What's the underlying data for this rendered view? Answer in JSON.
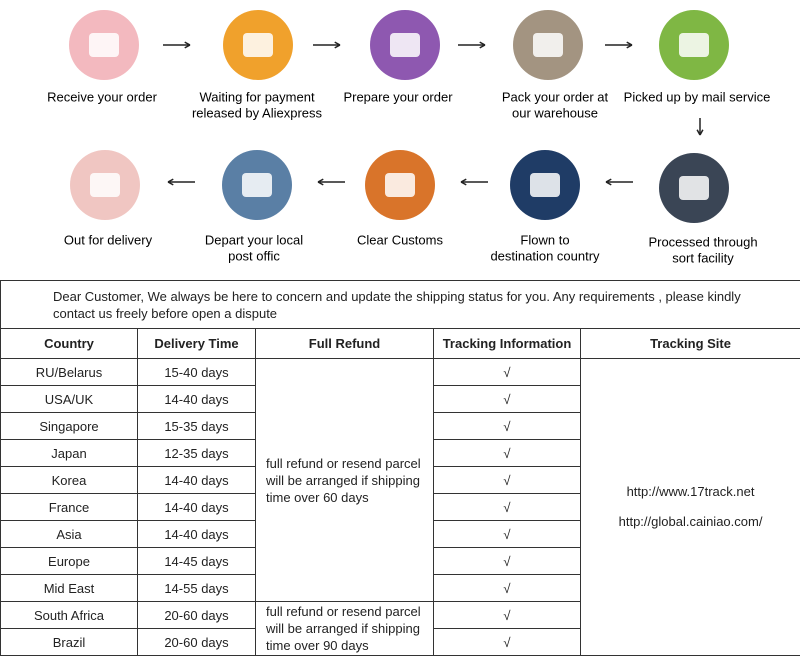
{
  "steps": [
    {
      "lines": [
        "Receive your order"
      ]
    },
    {
      "lines": [
        "Waiting for payment",
        "released by Aliexpress"
      ]
    },
    {
      "lines": [
        "Prepare your order"
      ]
    },
    {
      "lines": [
        "Pack your order at",
        "our warehouse"
      ]
    },
    {
      "lines": [
        "Picked up by mail service"
      ]
    },
    {
      "lines": [
        "Processed through",
        "sort facility"
      ]
    },
    {
      "lines": [
        "Flown to",
        "destination country"
      ]
    },
    {
      "lines": [
        "Clear  Customs"
      ]
    },
    {
      "lines": [
        "Depart your local",
        "post offic"
      ]
    },
    {
      "lines": [
        "Out for delivery"
      ]
    }
  ],
  "notice": [
    "Dear Customer, We always be here to concern and update the shipping status for you.  Any requirements , please kindly",
    "contact us freely before open a dispute"
  ],
  "table": {
    "headers": [
      "Country",
      "Delivery Time",
      "Full Refund",
      "Tracking Information",
      "Tracking Site"
    ],
    "rows": [
      [
        "RU/Belarus",
        "15-40 days",
        "√"
      ],
      [
        "USA/UK",
        "14-40 days",
        "√"
      ],
      [
        "Singapore",
        "15-35 days",
        "√"
      ],
      [
        "Japan",
        "12-35 days",
        "√"
      ],
      [
        "Korea",
        "14-40 days",
        "√"
      ],
      [
        "France",
        "14-40 days",
        "√"
      ],
      [
        "Asia",
        "14-40 days",
        "√"
      ],
      [
        "Europe",
        "14-45 days",
        "√"
      ],
      [
        "Mid East",
        "14-55 days",
        "√"
      ],
      [
        "South Africa",
        "20-60 days",
        "√"
      ],
      [
        "Brazil",
        "20-60 days",
        "√"
      ]
    ],
    "refund": [
      {
        "rows": 9,
        "lines": [
          "full refund or resend parcel",
          "will be arranged if shipping",
          "time over 60 days"
        ]
      },
      {
        "rows": 2,
        "lines": [
          "full refund or resend parcel",
          "will be arranged if shipping",
          "time over 90 days"
        ]
      }
    ],
    "sites": [
      "http://www.17track.net",
      "http://global.cainiao.com/"
    ]
  }
}
